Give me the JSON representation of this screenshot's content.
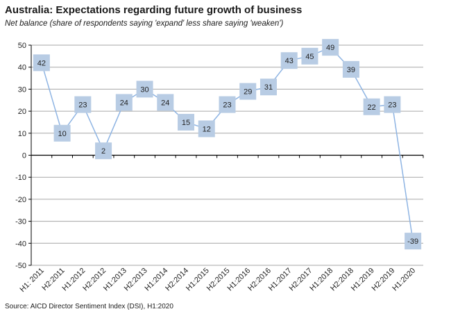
{
  "chart_data": {
    "type": "line",
    "title": "Australia: Expectations regarding future growth of business",
    "subtitle": "Net balance (share of respondents saying 'expand' less share saying 'weaken')",
    "source": "Source: AICD Director Sentiment Index (DSI), H1:2020",
    "categories": [
      "H1: 2011",
      "H2:2011",
      "H1:2012",
      "H2:2012",
      "H1:2013",
      "H2:2013",
      "H1:2014",
      "H2:2014",
      "H1:2015",
      "H2:2015",
      "H1:2016",
      "H2:2016",
      "H1:2017",
      "H2:2017",
      "H1:2018",
      "H2:2018",
      "H1:2019",
      "H2:2019",
      "H1:2020"
    ],
    "values": [
      42,
      10,
      23,
      2,
      24,
      30,
      24,
      15,
      12,
      23,
      29,
      31,
      43,
      45,
      49,
      39,
      22,
      23,
      -39
    ],
    "yticks": [
      50,
      40,
      30,
      20,
      10,
      0,
      -10,
      -20,
      -30,
      -40,
      -50
    ],
    "ylim": [
      -50,
      50
    ],
    "xlabel": "",
    "ylabel": "",
    "grid": true,
    "colors": {
      "line": "#8eb4e3",
      "marker": "#b8cce4",
      "grid": "#a6a6a6",
      "axis": "#000000"
    }
  }
}
